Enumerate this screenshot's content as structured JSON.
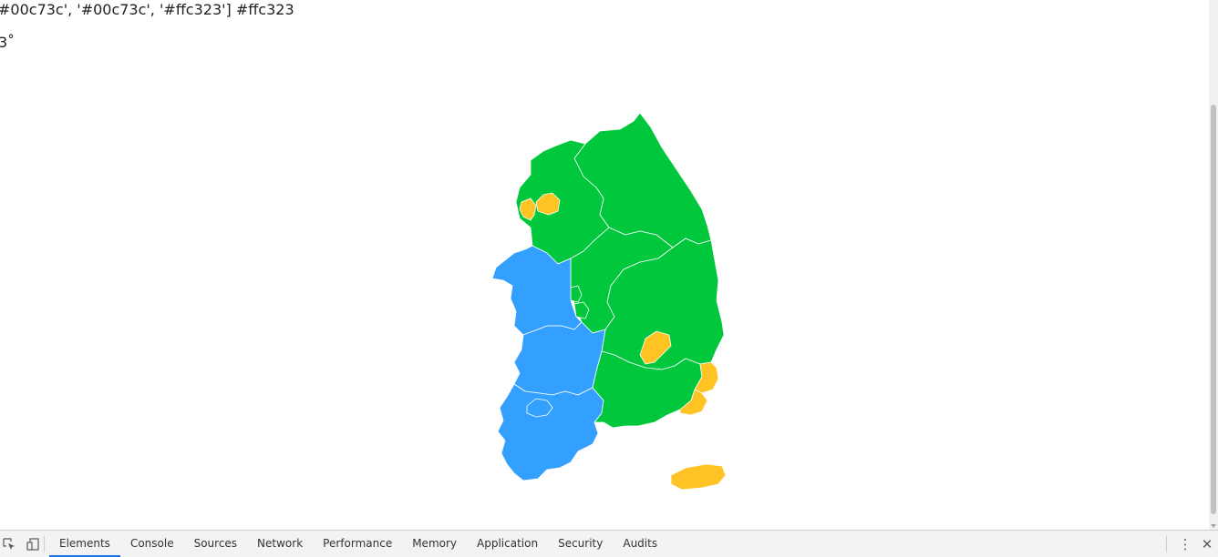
{
  "page": {
    "console_line1": "#00c73c', '#00c73c', '#ffc323'] #ffc323",
    "console_line2": "3˚"
  },
  "colors": {
    "green": "#00c73c",
    "blue": "#339fff",
    "yellow": "#ffc323",
    "border": "#ffffff"
  },
  "map": {
    "regions": [
      {
        "name": "Gyeonggi",
        "color": "#00c73c"
      },
      {
        "name": "Seoul",
        "color": "#ffc323"
      },
      {
        "name": "Incheon",
        "color": "#ffc323"
      },
      {
        "name": "Gangwon",
        "color": "#00c73c"
      },
      {
        "name": "Chungbuk",
        "color": "#00c73c"
      },
      {
        "name": "Sejong",
        "color": "#00c73c"
      },
      {
        "name": "Chungnam",
        "color": "#339fff"
      },
      {
        "name": "Daejeon",
        "color": "#00c73c"
      },
      {
        "name": "Gyeongbuk",
        "color": "#00c73c"
      },
      {
        "name": "Daegu",
        "color": "#ffc323"
      },
      {
        "name": "Jeonbuk",
        "color": "#339fff"
      },
      {
        "name": "Jeonnam",
        "color": "#339fff"
      },
      {
        "name": "Gwangju",
        "color": "#00c73c"
      },
      {
        "name": "Gyeongnam",
        "color": "#00c73c"
      },
      {
        "name": "Ulsan",
        "color": "#ffc323"
      },
      {
        "name": "Busan",
        "color": "#ffc323"
      },
      {
        "name": "Jeju",
        "color": "#ffc323"
      }
    ]
  },
  "devtools": {
    "tabs": [
      "Elements",
      "Console",
      "Sources",
      "Network",
      "Performance",
      "Memory",
      "Application",
      "Security",
      "Audits"
    ],
    "active_tab": "Elements",
    "icons": [
      "inspect-icon",
      "device-toggle-icon",
      "more-options-icon",
      "close-icon"
    ]
  }
}
